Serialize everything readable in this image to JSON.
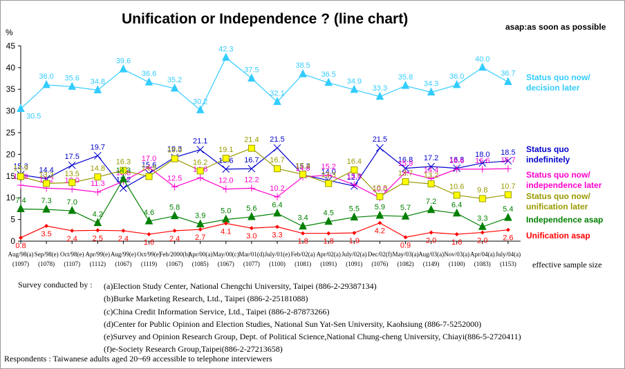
{
  "chart_data": {
    "type": "line",
    "title": "Unification or Independence ? (line chart)",
    "note": "asap:as soon as possible",
    "ylabel": "%",
    "ylim": [
      0,
      45
    ],
    "yticks": [
      0,
      5,
      10,
      15,
      20,
      25,
      30,
      35,
      40,
      45
    ],
    "grid": false,
    "legend_position": "right",
    "categories": [
      "Aug/98(a)",
      "Sep/98(e)",
      "Oct/98(e)",
      "Apr/99(e)",
      "Aug/99(e)",
      "Oct/99(e)",
      "Feb/2000(b)",
      "Apr/00(a)",
      "May/00(c)",
      "Mar/01(d)",
      "July/01(e)",
      "Feb/02(a)",
      "Apr/02(a)",
      "July/02(a)",
      "Dec/02(f)",
      "May/03(a)",
      "Aug/03(a)",
      "Nov/03(a)",
      "Apr/04(a)",
      "July/04(a)"
    ],
    "sample_sizes": [
      "(1097)",
      "(1078)",
      "(1107)",
      "(1112)",
      "(1067)",
      "(1119)",
      "(1067)",
      "(1085)",
      "(1067)",
      "(1077)",
      "(1100)",
      "(1081)",
      "(1091)",
      "(1091)",
      "(1076)",
      "(1082)",
      "(1149)",
      "(1100)",
      "(1083)",
      "(1153)"
    ],
    "sample_size_label": "effective sample size",
    "series": [
      {
        "name": "Status quo now/ decision later",
        "color": "#33CCFF",
        "marker": "triangle",
        "values": [
          30.5,
          36.0,
          35.6,
          34.8,
          39.6,
          36.6,
          35.2,
          30.2,
          42.3,
          37.5,
          32.1,
          38.5,
          36.5,
          34.9,
          33.3,
          35.8,
          34.3,
          36.0,
          40.0,
          36.7
        ]
      },
      {
        "name": "Status quo indefinitely",
        "color": "#0000CC",
        "marker": "x",
        "values": [
          15.3,
          14.4,
          17.5,
          19.7,
          12.2,
          15.6,
          19.3,
          21.1,
          16.6,
          16.7,
          21.5,
          15.3,
          14.0,
          12.7,
          21.5,
          16.8,
          17.2,
          16.8,
          18.0,
          18.5
        ]
      },
      {
        "name": "Status quo now/ independence later",
        "color": "#FF00CC",
        "marker": "cross",
        "values": [
          12.9,
          12.2,
          12.0,
          11.3,
          13.8,
          17.0,
          12.5,
          14.6,
          12.0,
          12.2,
          10.2,
          14.8,
          15.2,
          13.0,
          10.0,
          15.9,
          14.4,
          16.6,
          16.6,
          16.7
        ]
      },
      {
        "name": "Status quo now/ unification later",
        "color": "#999900",
        "marker": "square",
        "values": [
          14.9,
          13.3,
          13.5,
          14.8,
          16.3,
          14.9,
          19.0,
          16.2,
          19.1,
          21.4,
          16.7,
          15.4,
          13.3,
          16.4,
          10.3,
          13.7,
          13.2,
          10.6,
          9.8,
          10.7
        ]
      },
      {
        "name": "Independence asap",
        "color": "#008000",
        "marker": "triangle",
        "values": [
          7.4,
          7.3,
          7.0,
          4.2,
          14.3,
          4.6,
          5.8,
          3.9,
          5.0,
          5.6,
          6.4,
          3.4,
          4.5,
          5.5,
          5.9,
          5.7,
          7.2,
          6.4,
          3.3,
          5.4
        ]
      },
      {
        "name": "Unification asap",
        "color": "#FF0000",
        "marker": "diamond",
        "values": [
          0.8,
          3.5,
          2.4,
          2.5,
          2.4,
          1.6,
          2.4,
          2.7,
          4.1,
          3.0,
          3.3,
          1.8,
          1.8,
          1.9,
          4.2,
          0.9,
          2.0,
          1.6,
          2.0,
          2.6
        ]
      }
    ]
  },
  "legend": {
    "status_quo_decision_later": {
      "line1": "Status quo now/",
      "line2": "decision later"
    },
    "status_quo_indefinitely": {
      "line1": "Status quo",
      "line2": "indefinitely"
    },
    "status_quo_independence_later": {
      "line1": "Status quo now/",
      "line2": "independence later"
    },
    "status_quo_unification_later": {
      "line1": "Status quo now/",
      "line2": "unification later"
    },
    "independence_asap": "Independence asap",
    "unification_asap": "Unification asap"
  },
  "credits": {
    "label": "Survey conducted by :",
    "items": [
      "(a)Election Study Center, National Chengchi University, Taipei (886-2-29387134)",
      "(b)Burke Marketing Research, Ltd., Taipei (886-2-25181088)",
      "(c)China Credit Information Service, Ltd., Taipei (886-2-87873266)",
      "(d)Center for Public Opinion and Election Studies, National Sun Yat-Sen University, Kaohsiung (886-7-5252000)",
      "(e)Survey and Opinion Research Group, Dept. of Political Science,National Chung-cheng University, Chiayi(886-5-2720411)",
      "(f)e-Society Research Group,Taipei(886-2-27213658)"
    ],
    "respondents": "Respondents : Taiwanese adults aged 20~69 accessible to telephone interviewers"
  }
}
